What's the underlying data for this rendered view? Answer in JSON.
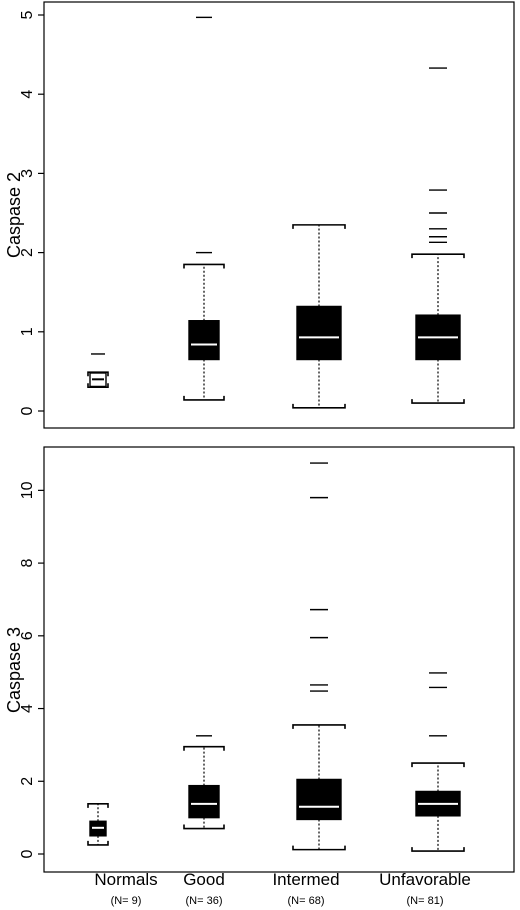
{
  "chart_data": [
    {
      "type": "box",
      "ylabel": "Caspase 2",
      "ylim": [
        0,
        5
      ],
      "yticks": [
        "0",
        "1",
        "2",
        "3",
        "4",
        "5"
      ],
      "categories": [
        "Normals",
        "Good",
        "Intermed",
        "Unfavorable"
      ],
      "n_labels": [
        "(N= 9)",
        "(N= 36)",
        "(N= 68)",
        "(N= 81)"
      ],
      "boxes": [
        {
          "whisker_low": 0.3,
          "q1": 0.31,
          "median": 0.4,
          "q3": 0.48,
          "whisker_high": 0.49,
          "outliers": [
            0.72
          ],
          "filled": false
        },
        {
          "whisker_low": 0.14,
          "q1": 0.65,
          "median": 0.84,
          "q3": 1.14,
          "whisker_high": 1.85,
          "outliers": [
            2.0,
            4.97
          ],
          "filled": true
        },
        {
          "whisker_low": 0.04,
          "q1": 0.65,
          "median": 0.93,
          "q3": 1.32,
          "whisker_high": 2.35,
          "outliers": [],
          "filled": true
        },
        {
          "whisker_low": 0.1,
          "q1": 0.65,
          "median": 0.93,
          "q3": 1.21,
          "whisker_high": 1.98,
          "outliers": [
            2.13,
            2.2,
            2.3,
            2.5,
            2.79,
            4.33
          ],
          "filled": true
        }
      ]
    },
    {
      "type": "box",
      "ylabel": "Caspase 3",
      "ylim": [
        0,
        11
      ],
      "yticks": [
        "0",
        "2",
        "4",
        "6",
        "8",
        "10"
      ],
      "categories": [
        "Normals",
        "Good",
        "Intermed",
        "Unfavorable"
      ],
      "n_labels": [
        "(N= 9)",
        "(N= 36)",
        "(N= 68)",
        "(N= 81)"
      ],
      "boxes": [
        {
          "whisker_low": 0.25,
          "q1": 0.5,
          "median": 0.72,
          "q3": 0.9,
          "whisker_high": 1.38,
          "outliers": [],
          "filled": true
        },
        {
          "whisker_low": 0.7,
          "q1": 1.0,
          "median": 1.38,
          "q3": 1.88,
          "whisker_high": 2.95,
          "outliers": [
            3.25
          ],
          "filled": true
        },
        {
          "whisker_low": 0.12,
          "q1": 0.95,
          "median": 1.3,
          "q3": 2.05,
          "whisker_high": 3.55,
          "outliers": [
            4.48,
            4.65,
            5.95,
            6.72,
            9.8,
            10.75
          ],
          "filled": true
        },
        {
          "whisker_low": 0.08,
          "q1": 1.05,
          "median": 1.38,
          "q3": 1.72,
          "whisker_high": 2.5,
          "outliers": [
            3.25,
            4.58,
            4.98
          ],
          "filled": true
        }
      ]
    }
  ]
}
